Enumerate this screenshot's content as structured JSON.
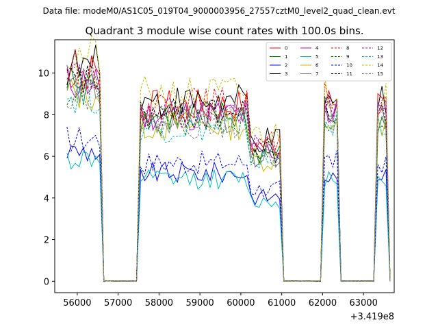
{
  "chart_data": {
    "type": "line",
    "suptitle": "Data file: modeM0/AS1C05_019T04_9000003956_27557cztM0_level2_quad_clean.evt",
    "title": "Quadrant 3 module wise count rates with 100.0s bins.",
    "xlabel": "",
    "ylabel": "",
    "x_offset_label": "+3.419e8",
    "xlim": [
      55450,
      63750
    ],
    "ylim": [
      -0.55,
      11.6
    ],
    "x_ticks": [
      56000,
      57000,
      58000,
      59000,
      60000,
      61000,
      62000,
      63000
    ],
    "x_tick_labels": [
      "56000",
      "57000",
      "58000",
      "59000",
      "60000",
      "61000",
      "62000",
      "63000"
    ],
    "y_ticks": [
      0,
      2,
      4,
      6,
      8,
      10
    ],
    "y_tick_labels": [
      "0",
      "2",
      "4",
      "6",
      "8",
      "10"
    ],
    "grid": false,
    "legend_position": "top-right",
    "series": [
      {
        "name": "0",
        "color": "#ff0000",
        "dash": "solid",
        "base": 8.4
      },
      {
        "name": "1",
        "color": "#008000",
        "dash": "solid",
        "base": 7.9
      },
      {
        "name": "2",
        "color": "#0000ff",
        "dash": "solid",
        "base": 5.2
      },
      {
        "name": "3",
        "color": "#000000",
        "dash": "solid",
        "base": 8.6
      },
      {
        "name": "4",
        "color": "#bf00bf",
        "dash": "solid",
        "base": 8.0
      },
      {
        "name": "5",
        "color": "#00bfbf",
        "dash": "solid",
        "base": 4.9
      },
      {
        "name": "6",
        "color": "#bfbf00",
        "dash": "solid",
        "base": 7.5
      },
      {
        "name": "7",
        "color": "#808080",
        "dash": "solid",
        "base": 7.8
      },
      {
        "name": "8",
        "color": "#ff0000",
        "dash": "dashed",
        "base": 8.5
      },
      {
        "name": "9",
        "color": "#008000",
        "dash": "dashed",
        "base": 7.7
      },
      {
        "name": "10",
        "color": "#0000ff",
        "dash": "dashed",
        "base": 5.7
      },
      {
        "name": "11",
        "color": "#000000",
        "dash": "dashed",
        "base": 8.0
      },
      {
        "name": "12",
        "color": "#bf00bf",
        "dash": "dashed",
        "base": 8.2
      },
      {
        "name": "13",
        "color": "#00bfbf",
        "dash": "dashed",
        "base": 7.4
      },
      {
        "name": "14",
        "color": "#bfbf00",
        "dash": "dashed",
        "base": 9.0
      },
      {
        "name": "15",
        "color": "#808080",
        "dash": "dashed",
        "base": 7.6
      }
    ],
    "x_start": 55750,
    "x_step": 100,
    "n_points": 80,
    "active_intervals": [
      [
        55750,
        56550
      ],
      [
        57550,
        60950
      ],
      [
        62050,
        62350
      ],
      [
        63350,
        63550
      ]
    ]
  }
}
